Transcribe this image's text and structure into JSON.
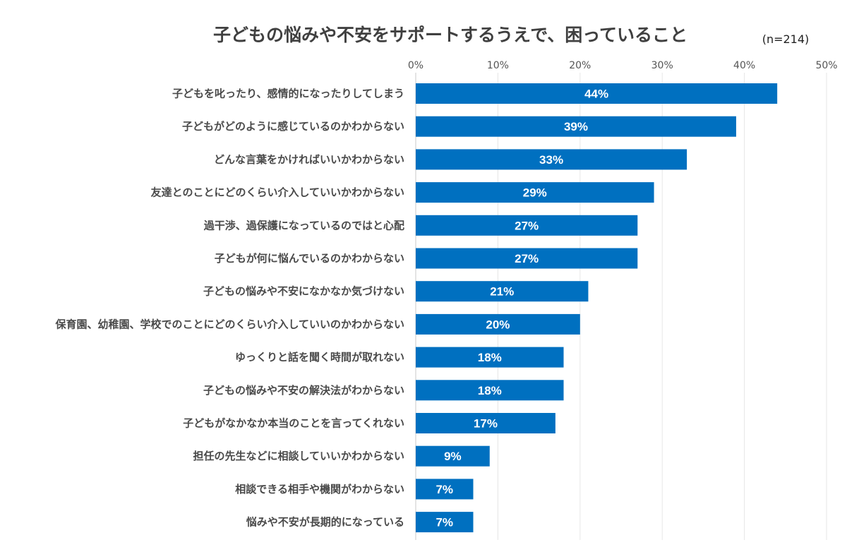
{
  "chart_data": {
    "type": "bar",
    "orientation": "horizontal",
    "title": "子どもの悩みや不安をサポートするうえで、困っていること",
    "sample_size": "(n=214)",
    "xlim": [
      0,
      50
    ],
    "x_ticks": [
      0,
      10,
      20,
      30,
      40,
      50
    ],
    "x_tick_labels": [
      "0%",
      "10%",
      "20%",
      "30%",
      "40%",
      "50%"
    ],
    "axis_position": "top",
    "grid": true,
    "bar_color": "#0070C0",
    "categories": [
      "子どもを叱ったり、感情的になったりしてしまう",
      "子どもがどのように感じているのかわからない",
      "どんな言葉をかければいいかわからない",
      "友達とのことにどのくらい介入していいかわからない",
      "過干渉、過保護になっているのではと心配",
      "子どもが何に悩んでいるのかわからない",
      "子どもの悩みや不安になかなか気づけない",
      "保育園、幼稚園、学校でのことにどのくらい介入していいのかわからない",
      "ゆっくりと話を聞く時間が取れない",
      "子どもの悩みや不安の解決法がわからない",
      "子どもがなかなか本当のことを言ってくれない",
      "担任の先生などに相談していいかわからない",
      "相談できる相手や機関がわからない",
      "悩みや不安が長期的になっている"
    ],
    "values": [
      44,
      39,
      33,
      29,
      27,
      27,
      21,
      20,
      18,
      18,
      17,
      9,
      7,
      7
    ],
    "value_labels": [
      "44%",
      "39%",
      "33%",
      "29%",
      "27%",
      "27%",
      "21%",
      "20%",
      "18%",
      "18%",
      "17%",
      "9%",
      "7%",
      "7%"
    ]
  }
}
